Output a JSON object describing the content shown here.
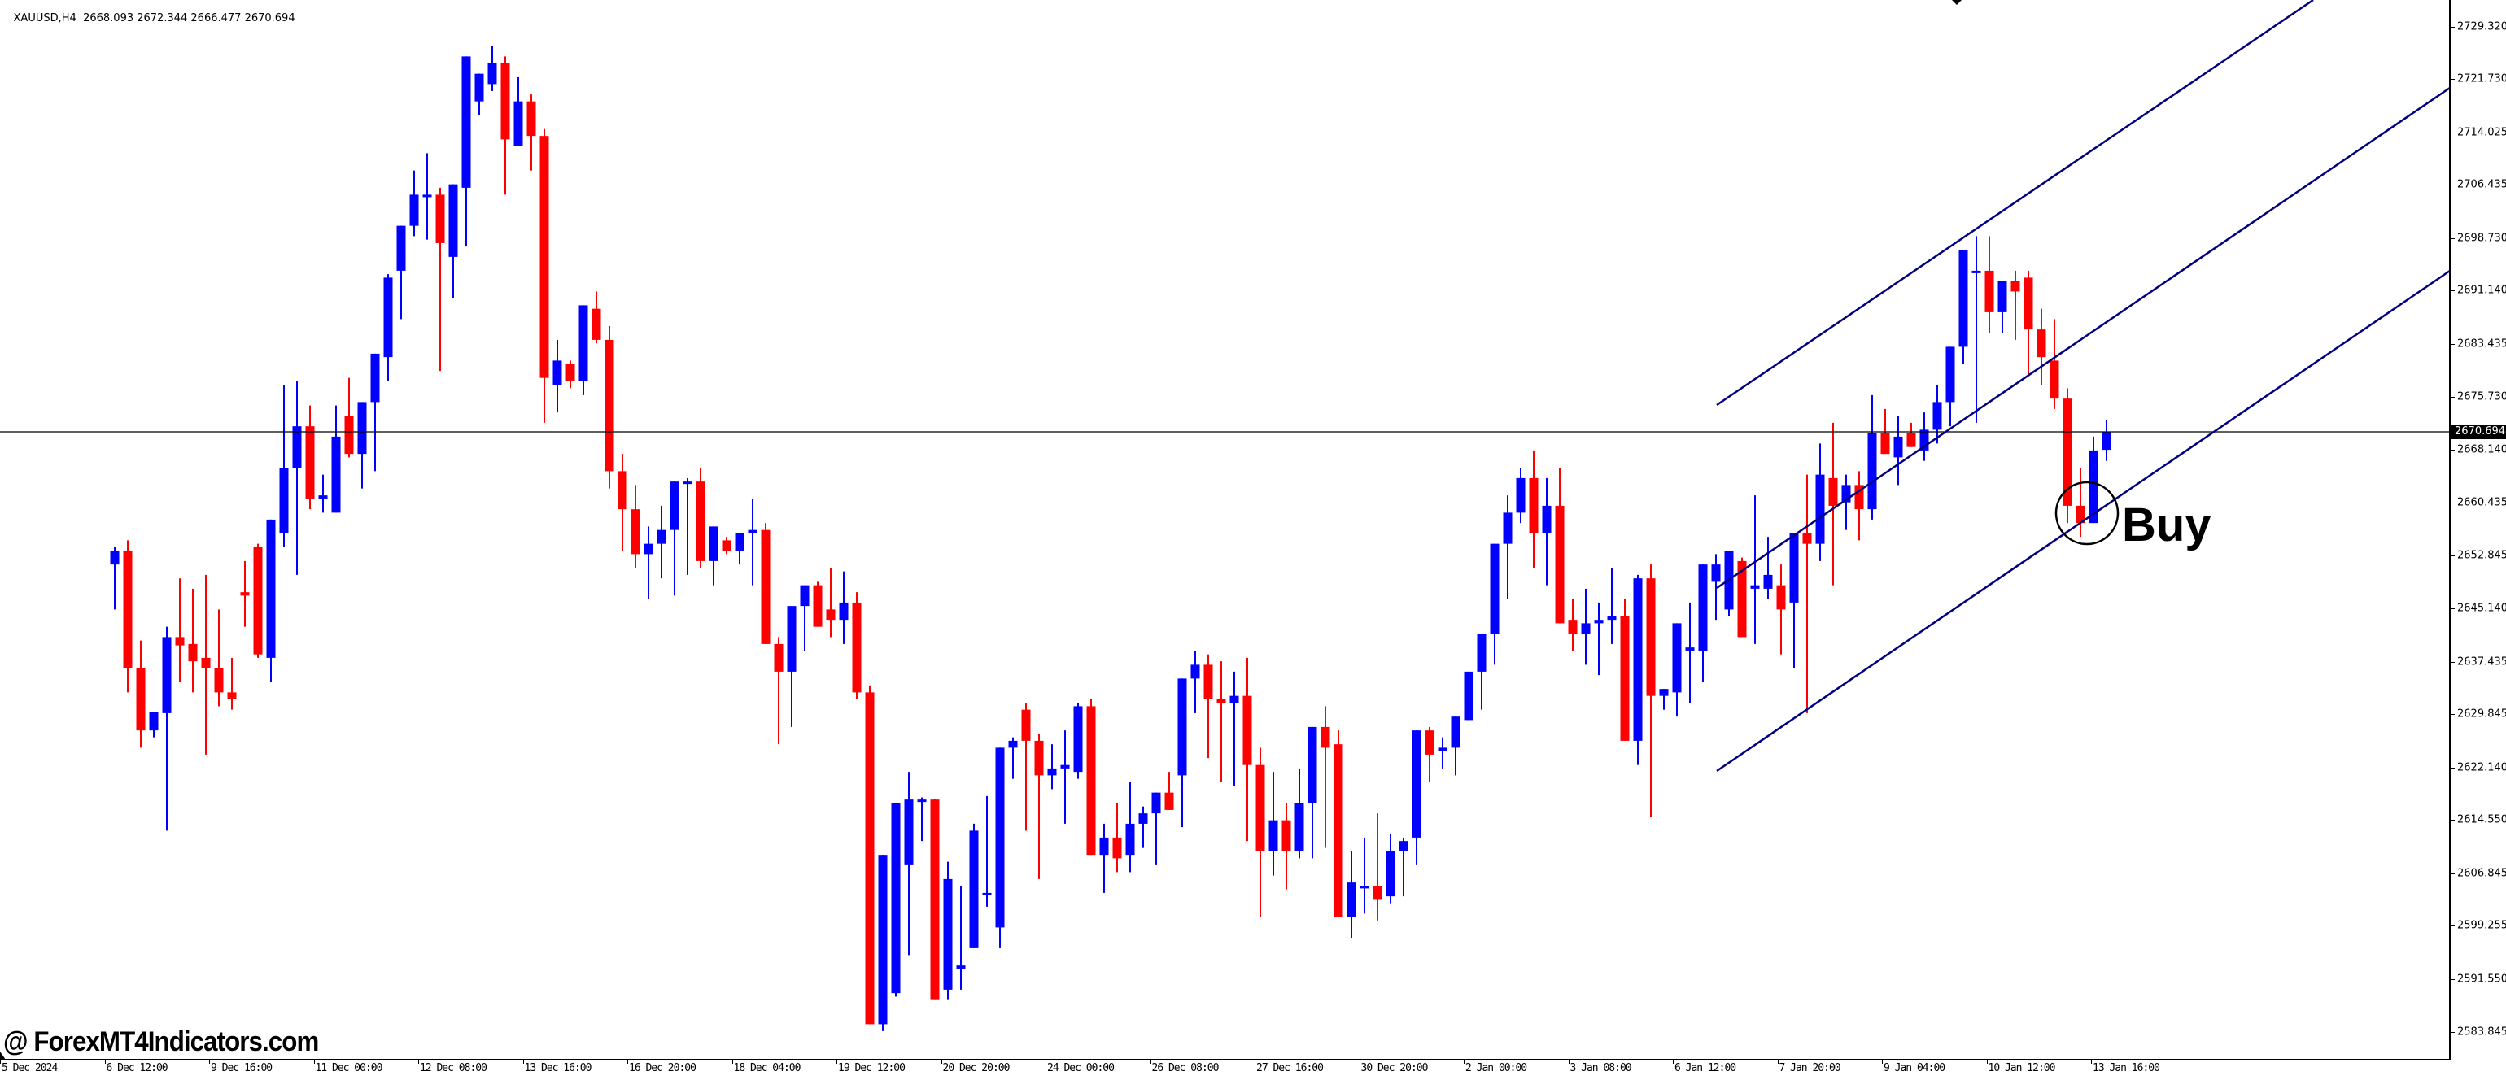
{
  "header": {
    "symbol": "XAUUSD,H4",
    "ohlc": "2668.093 2672.344 2666.477 2670.694"
  },
  "annotations": {
    "signal_label": "Buy",
    "watermark": "@ ForexMT4Indicators.com"
  },
  "colors": {
    "bull": "#0000ff",
    "bear": "#ff0000",
    "channel": "#000080",
    "background": "#ffffff",
    "axis": "#000000",
    "current_price_bg": "#000000"
  },
  "price_axis": {
    "current_price": "2670.694",
    "ticks": [
      "2729.320",
      "2721.730",
      "2714.025",
      "2706.435",
      "2698.730",
      "2691.140",
      "2683.435",
      "2675.730",
      "2668.140",
      "2660.435",
      "2652.845",
      "2645.140",
      "2637.435",
      "2629.845",
      "2622.140",
      "2614.550",
      "2606.845",
      "2599.255",
      "2591.550",
      "2583.845"
    ]
  },
  "time_axis": {
    "labels": [
      "5 Dec 2024",
      "6 Dec 12:00",
      "9 Dec 16:00",
      "11 Dec 00:00",
      "12 Dec 08:00",
      "13 Dec 16:00",
      "16 Dec 20:00",
      "18 Dec 04:00",
      "19 Dec 12:00",
      "20 Dec 20:00",
      "24 Dec 00:00",
      "26 Dec 08:00",
      "27 Dec 16:00",
      "30 Dec 20:00",
      "2 Jan 00:00",
      "3 Jan 08:00",
      "6 Jan 12:00",
      "7 Jan 20:00",
      "9 Jan 04:00",
      "10 Jan 12:00",
      "13 Jan 16:00"
    ]
  },
  "chart_data": {
    "type": "candlestick",
    "title": "XAUUSD,H4",
    "timeframe": "H4",
    "last_bar": {
      "open": 2668.093,
      "high": 2672.344,
      "low": 2666.477,
      "close": 2670.694
    },
    "ylim": [
      2580.0,
      2733.0
    ],
    "y_ticks": [
      2729.32,
      2721.73,
      2714.025,
      2706.435,
      2698.73,
      2691.14,
      2683.435,
      2675.73,
      2668.14,
      2660.435,
      2652.845,
      2645.14,
      2637.435,
      2629.845,
      2622.14,
      2614.55,
      2606.845,
      2599.255,
      2591.55,
      2583.845
    ],
    "x_tick_labels": [
      "5 Dec 2024",
      "6 Dec 12:00",
      "9 Dec 16:00",
      "11 Dec 00:00",
      "12 Dec 08:00",
      "13 Dec 16:00",
      "16 Dec 20:00",
      "18 Dec 04:00",
      "19 Dec 12:00",
      "20 Dec 20:00",
      "24 Dec 00:00",
      "26 Dec 08:00",
      "27 Dec 16:00",
      "30 Dec 20:00",
      "2 Jan 00:00",
      "3 Jan 08:00",
      "6 Jan 12:00",
      "7 Jan 20:00",
      "9 Jan 04:00",
      "10 Jan 12:00",
      "13 Jan 16:00"
    ],
    "horizontal_line": 2670.694,
    "grid": false,
    "candles": [
      [
        2651.5,
        2654.0,
        2645.0,
        2653.5
      ],
      [
        2653.5,
        2655.0,
        2633.0,
        2636.5
      ],
      [
        2636.5,
        2640.5,
        2625.0,
        2627.5
      ],
      [
        2627.5,
        2630.0,
        2626.5,
        2630.2
      ],
      [
        2630.0,
        2642.5,
        2613.0,
        2641.0
      ],
      [
        2641.0,
        2649.5,
        2634.5,
        2639.8
      ],
      [
        2640.0,
        2648.0,
        2633.0,
        2637.5
      ],
      [
        2638.0,
        2650.0,
        2624.0,
        2636.5
      ],
      [
        2636.5,
        2645.0,
        2631.0,
        2633.0
      ],
      [
        2633.0,
        2638.0,
        2630.5,
        2632.0
      ],
      [
        2647.5,
        2652.0,
        2642.5,
        2647.0
      ],
      [
        2654.0,
        2654.5,
        2638.0,
        2638.5
      ],
      [
        2638.0,
        2658.0,
        2634.5,
        2658.0
      ],
      [
        2656.0,
        2677.5,
        2654.0,
        2665.5
      ],
      [
        2665.5,
        2678.0,
        2650.0,
        2671.5
      ],
      [
        2671.5,
        2674.5,
        2659.5,
        2661.0
      ],
      [
        2661.0,
        2664.5,
        2659.0,
        2661.5
      ],
      [
        2659.0,
        2674.5,
        2659.0,
        2670.0
      ],
      [
        2673.0,
        2678.5,
        2667.0,
        2667.5
      ],
      [
        2667.5,
        2672.5,
        2662.5,
        2675.0
      ],
      [
        2675.0,
        2680.5,
        2665.0,
        2682.0
      ],
      [
        2681.5,
        2693.5,
        2678.0,
        2693.0
      ],
      [
        2694.0,
        2695.5,
        2687.0,
        2700.5
      ],
      [
        2700.5,
        2708.5,
        2699.0,
        2705.0
      ],
      [
        2705.0,
        2711.0,
        2698.5,
        2705.0
      ],
      [
        2705.0,
        2706.0,
        2679.5,
        2698.0
      ],
      [
        2696.0,
        2702.0,
        2690.0,
        2706.5
      ],
      [
        2706.0,
        2719.0,
        2697.5,
        2725.0
      ],
      [
        2718.5,
        2722.0,
        2716.5,
        2722.5
      ],
      [
        2721.0,
        2726.5,
        2720.0,
        2724.0
      ],
      [
        2724.0,
        2725.0,
        2705.0,
        2713.0
      ],
      [
        2712.0,
        2722.0,
        2712.0,
        2718.5
      ],
      [
        2718.5,
        2719.5,
        2708.5,
        2713.5
      ],
      [
        2713.5,
        2714.5,
        2672.0,
        2678.5
      ],
      [
        2677.5,
        2684.0,
        2673.5,
        2681.0
      ],
      [
        2680.5,
        2681.0,
        2677.0,
        2678.0
      ],
      [
        2678.0,
        2686.5,
        2676.0,
        2689.0
      ],
      [
        2688.5,
        2691.0,
        2683.5,
        2684.0
      ],
      [
        2684.0,
        2686.0,
        2662.5,
        2665.0
      ],
      [
        2665.0,
        2667.5,
        2653.5,
        2659.5
      ],
      [
        2659.5,
        2663.0,
        2651.0,
        2653.0
      ],
      [
        2653.0,
        2657.0,
        2646.5,
        2654.5
      ],
      [
        2654.5,
        2660.0,
        2649.5,
        2656.5
      ],
      [
        2656.5,
        2660.0,
        2647.0,
        2663.5
      ],
      [
        2663.5,
        2664.0,
        2650.0,
        2663.5
      ],
      [
        2663.5,
        2665.5,
        2651.0,
        2652.0
      ],
      [
        2652.0,
        2656.0,
        2648.5,
        2657.0
      ],
      [
        2655.0,
        2655.5,
        2653.0,
        2653.5
      ],
      [
        2653.5,
        2654.5,
        2651.5,
        2656.0
      ],
      [
        2656.0,
        2661.0,
        2648.5,
        2656.5
      ],
      [
        2656.5,
        2657.5,
        2644.0,
        2640.0
      ],
      [
        2640.0,
        2641.0,
        2625.5,
        2636.0
      ],
      [
        2636.0,
        2644.0,
        2628.0,
        2645.5
      ],
      [
        2645.5,
        2648.5,
        2639.0,
        2648.5
      ],
      [
        2648.5,
        2649.0,
        2643.0,
        2642.5
      ],
      [
        2645.0,
        2651.0,
        2641.0,
        2643.5
      ],
      [
        2643.5,
        2650.5,
        2640.0,
        2646.0
      ],
      [
        2646.0,
        2647.5,
        2632.0,
        2633.0
      ],
      [
        2633.0,
        2634.0,
        2624.5,
        2585.0
      ],
      [
        2585.0,
        2601.0,
        2584.0,
        2609.5
      ],
      [
        2589.5,
        2612.0,
        2589.0,
        2617.0
      ],
      [
        2608.0,
        2621.5,
        2595.0,
        2617.5
      ],
      [
        2617.5,
        2617.8,
        2611.5,
        2617.5
      ],
      [
        2617.5,
        2617.6,
        2590.0,
        2588.5
      ],
      [
        2590.0,
        2608.5,
        2588.5,
        2606.0
      ],
      [
        2593.0,
        2605.0,
        2590.0,
        2593.5
      ],
      [
        2596.0,
        2614.0,
        2598.5,
        2613.0
      ],
      [
        2604.0,
        2618.0,
        2602.0,
        2604.0
      ],
      [
        2599.0,
        2618.5,
        2596.0,
        2625.0
      ],
      [
        2625.0,
        2626.5,
        2620.5,
        2626.0
      ],
      [
        2630.5,
        2631.5,
        2613.0,
        2626.0
      ],
      [
        2626.0,
        2627.0,
        2606.0,
        2621.0
      ],
      [
        2621.0,
        2625.5,
        2619.0,
        2622.0
      ],
      [
        2622.0,
        2627.5,
        2614.0,
        2622.5
      ],
      [
        2621.5,
        2631.5,
        2620.5,
        2631.0
      ],
      [
        2631.0,
        2632.0,
        2621.0,
        2609.5
      ],
      [
        2609.5,
        2614.0,
        2604.0,
        2612.0
      ],
      [
        2612.0,
        2617.0,
        2607.0,
        2609.0
      ],
      [
        2609.5,
        2620.0,
        2607.0,
        2614.0
      ],
      [
        2614.0,
        2616.5,
        2610.5,
        2615.5
      ],
      [
        2615.5,
        2618.5,
        2608.0,
        2618.5
      ],
      [
        2618.5,
        2621.5,
        2617.0,
        2616.0
      ],
      [
        2621.0,
        2630.5,
        2613.5,
        2635.0
      ],
      [
        2635.0,
        2639.0,
        2630.0,
        2637.0
      ],
      [
        2637.0,
        2638.5,
        2623.5,
        2632.0
      ],
      [
        2632.0,
        2637.5,
        2620.0,
        2631.5
      ],
      [
        2631.5,
        2636.0,
        2619.5,
        2632.5
      ],
      [
        2632.5,
        2638.0,
        2611.5,
        2622.5
      ],
      [
        2622.5,
        2625.0,
        2600.5,
        2610.0
      ],
      [
        2610.0,
        2621.5,
        2606.5,
        2614.5
      ],
      [
        2614.5,
        2617.0,
        2604.5,
        2610.0
      ],
      [
        2610.0,
        2622.0,
        2609.0,
        2617.0
      ],
      [
        2617.0,
        2626.0,
        2609.0,
        2628.0
      ],
      [
        2628.0,
        2631.0,
        2610.5,
        2625.0
      ],
      [
        2625.5,
        2627.5,
        2601.5,
        2600.5
      ],
      [
        2600.5,
        2610.0,
        2597.5,
        2605.5
      ],
      [
        2605.0,
        2612.0,
        2601.0,
        2605.0
      ],
      [
        2605.0,
        2615.5,
        2600.0,
        2603.0
      ],
      [
        2603.5,
        2612.5,
        2602.5,
        2610.0
      ],
      [
        2610.0,
        2612.0,
        2603.5,
        2611.5
      ],
      [
        2612.0,
        2626.0,
        2608.0,
        2627.5
      ],
      [
        2627.5,
        2628.0,
        2620.0,
        2624.0
      ],
      [
        2624.5,
        2626.5,
        2622.0,
        2625.0
      ],
      [
        2625.0,
        2628.0,
        2621.0,
        2629.5
      ],
      [
        2629.0,
        2633.0,
        2629.0,
        2636.0
      ],
      [
        2636.0,
        2641.5,
        2630.5,
        2641.5
      ],
      [
        2641.5,
        2647.5,
        2637.0,
        2654.5
      ],
      [
        2654.5,
        2661.5,
        2646.5,
        2659.0
      ],
      [
        2659.0,
        2665.5,
        2657.5,
        2664.0
      ],
      [
        2664.0,
        2668.0,
        2651.0,
        2656.0
      ],
      [
        2656.0,
        2664.0,
        2648.5,
        2660.0
      ],
      [
        2660.0,
        2665.5,
        2646.5,
        2643.0
      ],
      [
        2643.5,
        2646.5,
        2639.0,
        2641.5
      ],
      [
        2641.5,
        2648.0,
        2637.0,
        2643.0
      ],
      [
        2643.0,
        2646.0,
        2635.5,
        2643.5
      ],
      [
        2643.5,
        2651.0,
        2640.0,
        2644.0
      ],
      [
        2644.0,
        2646.5,
        2626.0,
        2626.0
      ],
      [
        2626.0,
        2650.0,
        2622.5,
        2649.5
      ],
      [
        2649.5,
        2651.5,
        2615.0,
        2632.5
      ],
      [
        2632.5,
        2633.0,
        2630.5,
        2633.5
      ],
      [
        2633.0,
        2641.5,
        2629.5,
        2643.0
      ],
      [
        2639.0,
        2646.0,
        2631.5,
        2639.5
      ],
      [
        2639.0,
        2651.0,
        2634.5,
        2651.5
      ],
      [
        2649.0,
        2653.0,
        2643.5,
        2651.5
      ],
      [
        2645.0,
        2653.0,
        2644.0,
        2653.5
      ],
      [
        2652.0,
        2652.5,
        2643.5,
        2641.0
      ],
      [
        2648.0,
        2661.5,
        2640.0,
        2648.5
      ],
      [
        2648.0,
        2655.5,
        2646.5,
        2650.0
      ],
      [
        2648.5,
        2651.5,
        2638.5,
        2645.0
      ],
      [
        2646.0,
        2656.0,
        2636.5,
        2656.0
      ],
      [
        2656.0,
        2664.5,
        2630.0,
        2654.5
      ],
      [
        2654.5,
        2669.0,
        2652.0,
        2664.5
      ],
      [
        2664.0,
        2672.0,
        2648.5,
        2660.0
      ],
      [
        2660.5,
        2664.5,
        2656.5,
        2663.0
      ],
      [
        2663.0,
        2665.0,
        2655.0,
        2659.5
      ],
      [
        2659.5,
        2676.0,
        2658.0,
        2670.5
      ],
      [
        2670.5,
        2674.0,
        2667.5,
        2667.5
      ],
      [
        2667.0,
        2673.0,
        2663.0,
        2670.0
      ],
      [
        2670.5,
        2672.0,
        2668.5,
        2668.5
      ],
      [
        2668.0,
        2673.5,
        2666.5,
        2671.0
      ],
      [
        2671.0,
        2677.5,
        2669.0,
        2675.0
      ],
      [
        2675.0,
        2680.5,
        2671.5,
        2683.0
      ],
      [
        2683.0,
        2688.5,
        2680.5,
        2697.0
      ],
      [
        2694.0,
        2699.0,
        2672.0,
        2694.0
      ],
      [
        2694.0,
        2699.0,
        2685.0,
        2688.0
      ],
      [
        2688.0,
        2691.0,
        2685.0,
        2692.5
      ],
      [
        2692.5,
        2694.0,
        2684.0,
        2691.0
      ],
      [
        2693.0,
        2694.0,
        2679.0,
        2685.5
      ],
      [
        2685.5,
        2688.5,
        2677.5,
        2681.5
      ],
      [
        2681.0,
        2687.0,
        2674.0,
        2675.5
      ],
      [
        2675.5,
        2677.0,
        2657.5,
        2660.0
      ],
      [
        2660.0,
        2665.5,
        2655.5,
        2657.5
      ],
      [
        2657.5,
        2670.0,
        2659.5,
        2668.0
      ],
      [
        2668.093,
        2672.344,
        2666.477,
        2670.694
      ]
    ],
    "trend_channel": {
      "type": "parallel_channel",
      "color": "#000080",
      "upper": {
        "start": {
          "x_label": "7 Jan 04:00",
          "price": 2674.0
        },
        "end_direction": "up-right, extends off chart top"
      },
      "middle": {
        "start": {
          "x_label": "7 Jan 04:00",
          "price": 2648.0
        },
        "end": {
          "price": 2717.8
        }
      },
      "lower": {
        "start": {
          "x_label": "7 Jan 04:00",
          "price": 2621.0
        },
        "end": {
          "price": 2693.5
        }
      }
    },
    "annotations": [
      {
        "type": "circle",
        "around": "lower channel touch near 13 Jan",
        "price": 2660.0
      },
      {
        "type": "text",
        "text": "Buy",
        "price": 2657.0
      }
    ]
  }
}
